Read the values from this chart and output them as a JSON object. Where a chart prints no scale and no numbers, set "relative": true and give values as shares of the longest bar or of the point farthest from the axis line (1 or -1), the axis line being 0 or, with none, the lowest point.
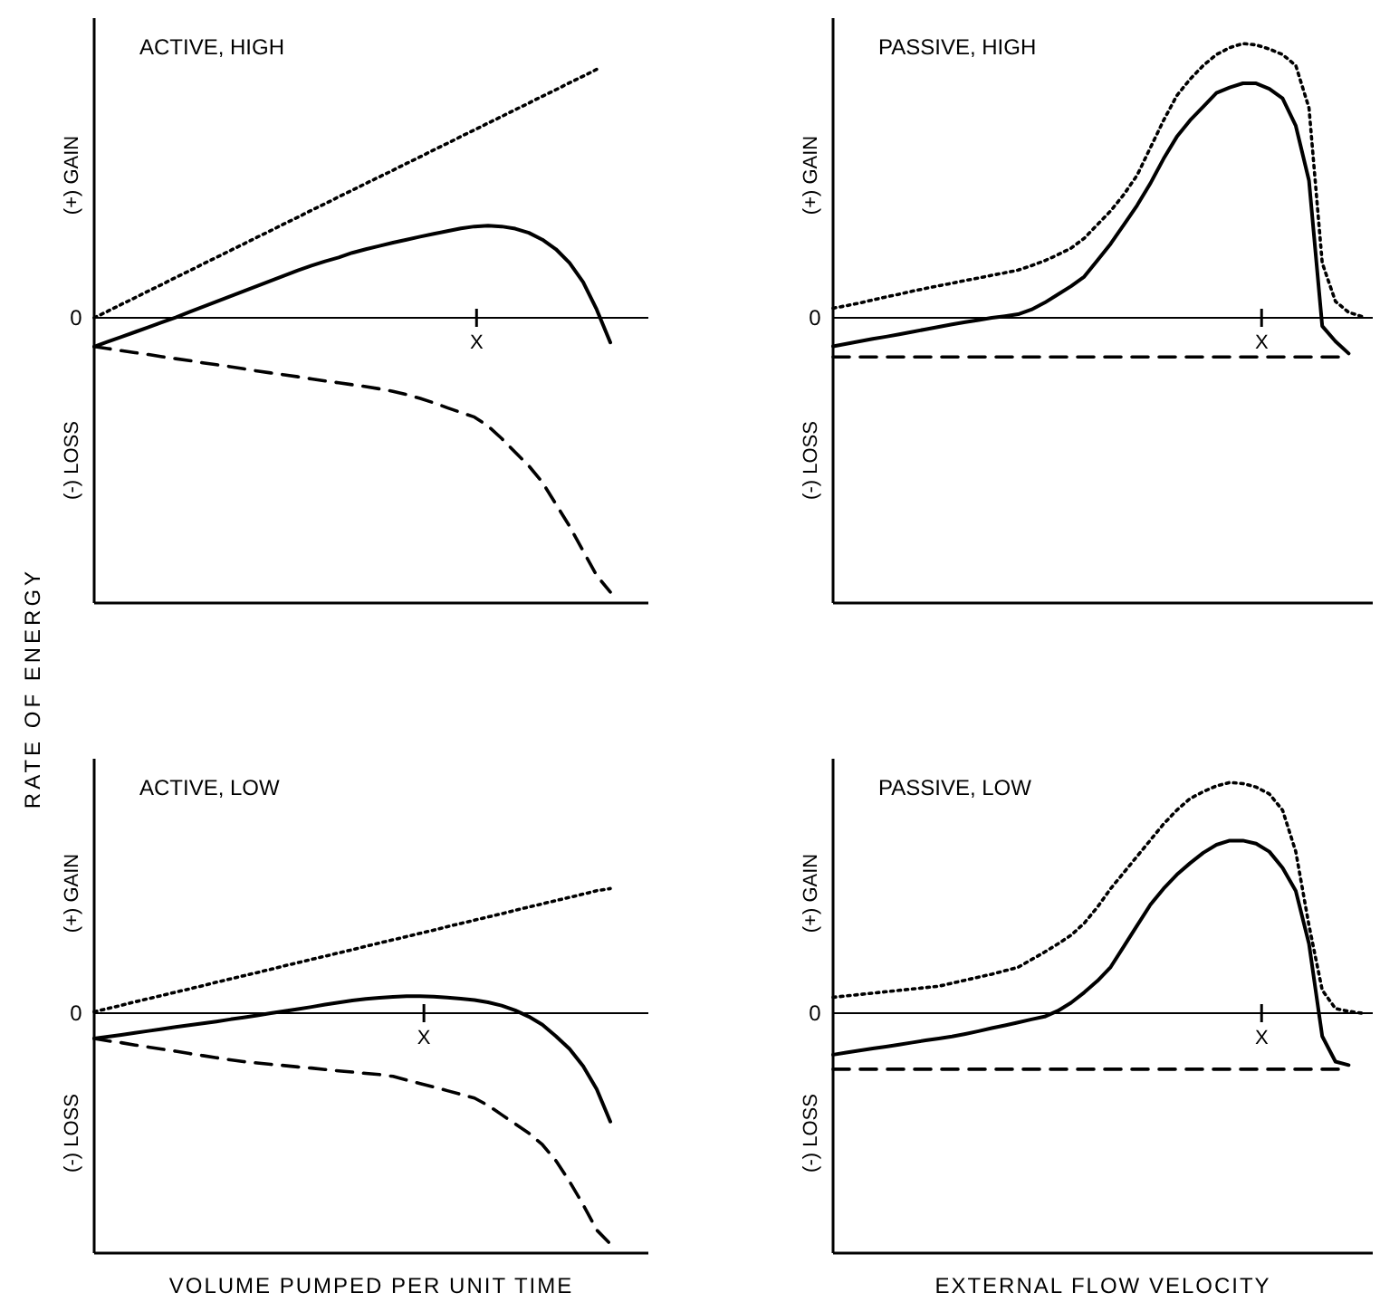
{
  "chart_data": [
    {
      "type": "line",
      "title": "ACTIVE, HIGH",
      "ylabel": "RATE OF ENERGY",
      "annotations": [
        "(+) GAIN",
        "(-) LOSS",
        "0",
        "X"
      ],
      "relative": true,
      "categories": [
        null,
        null,
        null,
        null,
        null,
        null,
        null,
        null,
        null,
        null,
        null,
        null,
        null,
        null,
        null,
        null,
        null,
        null,
        null,
        null,
        null,
        null,
        null,
        null,
        null,
        null,
        null,
        null,
        null,
        null,
        null,
        null,
        null,
        null,
        null,
        null,
        null,
        null,
        null,
        null,
        null
      ],
      "series": [
        {
          "color": "#000000",
          "line_style": "dotted",
          "values": [
            0,
            0.024,
            0.049,
            0.073,
            0.098,
            0.122,
            0.147,
            0.171,
            0.196,
            0.22,
            0.245,
            0.269,
            0.294,
            0.318,
            0.343,
            0.367,
            0.392,
            0.416,
            0.441,
            0.465,
            0.49,
            0.514,
            0.538,
            0.563,
            0.587,
            0.612,
            0.636,
            0.661,
            0.685,
            0.71,
            0.734,
            0.759,
            0.783,
            0.808,
            0.832,
            0.857,
            0.881,
            0.906,
            null,
            null,
            null
          ]
        },
        {
          "color": "#000000",
          "line_style": "solid",
          "values": [
            -0.105,
            -0.087,
            -0.07,
            -0.052,
            -0.034,
            -0.016,
            0.001,
            0.021,
            0.04,
            0.059,
            0.078,
            0.097,
            0.116,
            0.135,
            0.154,
            0.173,
            0.19,
            0.206,
            0.22,
            0.237,
            0.25,
            0.262,
            0.274,
            0.285,
            0.296,
            0.306,
            0.316,
            0.326,
            0.333,
            0.336,
            0.333,
            0.325,
            0.31,
            0.285,
            0.25,
            0.2,
            0.13,
            0.03,
            -0.09,
            null,
            null
          ]
        },
        {
          "color": "#000000",
          "line_style": "dashed",
          "values": [
            -0.105,
            -0.112,
            -0.12,
            -0.127,
            -0.134,
            -0.142,
            -0.149,
            -0.156,
            -0.164,
            -0.171,
            -0.178,
            -0.186,
            -0.194,
            -0.201,
            -0.208,
            -0.215,
            -0.223,
            -0.23,
            -0.237,
            -0.244,
            -0.251,
            -0.259,
            -0.268,
            -0.28,
            -0.294,
            -0.31,
            -0.328,
            -0.345,
            -0.362,
            -0.395,
            -0.44,
            -0.49,
            -0.54,
            -0.6,
            -0.68,
            -0.76,
            -0.85,
            -0.94,
            -1,
            null,
            null
          ]
        }
      ]
    },
    {
      "type": "line",
      "title": "PASSIVE, HIGH",
      "annotations": [
        "(+) GAIN",
        "(-) LOSS",
        "0",
        "X"
      ],
      "relative": true,
      "categories": [
        null,
        null,
        null,
        null,
        null,
        null,
        null,
        null,
        null,
        null,
        null,
        null,
        null,
        null,
        null,
        null,
        null,
        null,
        null,
        null,
        null,
        null,
        null,
        null,
        null,
        null,
        null,
        null,
        null,
        null,
        null,
        null,
        null,
        null,
        null,
        null,
        null,
        null,
        null,
        null,
        null
      ],
      "series": [
        {
          "color": "#000000",
          "line_style": "dotted",
          "values": [
            0.035,
            0.044,
            0.054,
            0.065,
            0.076,
            0.086,
            0.097,
            0.107,
            0.117,
            0.126,
            0.136,
            0.145,
            0.155,
            0.164,
            0.174,
            0.19,
            0.208,
            0.23,
            0.254,
            0.29,
            0.34,
            0.39,
            0.45,
            0.52,
            0.62,
            0.72,
            0.81,
            0.87,
            0.92,
            0.96,
            0.985,
            1,
            0.995,
            0.98,
            0.96,
            0.92,
            0.765,
            0.2,
            0.06,
            0.02,
            0.005
          ]
        },
        {
          "color": "#000000",
          "line_style": "solid",
          "values": [
            -0.104,
            -0.095,
            -0.086,
            -0.077,
            -0.069,
            -0.06,
            -0.051,
            -0.042,
            -0.033,
            -0.024,
            -0.016,
            -0.008,
            0,
            0.006,
            0.013,
            0.03,
            0.055,
            0.085,
            0.115,
            0.15,
            0.21,
            0.27,
            0.34,
            0.41,
            0.49,
            0.58,
            0.66,
            0.72,
            0.77,
            0.82,
            0.84,
            0.855,
            0.855,
            0.835,
            0.8,
            0.7,
            0.5,
            -0.03,
            -0.086,
            -0.13,
            null
          ]
        },
        {
          "color": "#000000",
          "line_style": "dashed",
          "values": [
            -0.143,
            -0.143,
            -0.143,
            -0.143,
            -0.143,
            -0.143,
            -0.143,
            -0.143,
            -0.143,
            -0.143,
            -0.143,
            -0.143,
            -0.143,
            -0.143,
            -0.143,
            -0.143,
            -0.143,
            -0.143,
            -0.143,
            -0.143,
            -0.143,
            -0.143,
            -0.143,
            -0.143,
            -0.143,
            -0.143,
            -0.143,
            -0.143,
            -0.143,
            -0.143,
            -0.143,
            -0.143,
            -0.143,
            -0.143,
            -0.143,
            -0.143,
            -0.143,
            -0.143,
            -0.143,
            -0.143,
            null
          ]
        }
      ]
    },
    {
      "type": "line",
      "title": "ACTIVE, LOW",
      "xlabel": "VOLUME PUMPED PER UNIT TIME",
      "annotations": [
        "(+) GAIN",
        "(-) LOSS",
        "0",
        "X"
      ],
      "relative": true,
      "categories": [
        null,
        null,
        null,
        null,
        null,
        null,
        null,
        null,
        null,
        null,
        null,
        null,
        null,
        null,
        null,
        null,
        null,
        null,
        null,
        null,
        null,
        null,
        null,
        null,
        null,
        null,
        null,
        null,
        null,
        null,
        null,
        null,
        null,
        null,
        null,
        null,
        null,
        null,
        null,
        null,
        null
      ],
      "series": [
        {
          "color": "#000000",
          "line_style": "dotted",
          "values": [
            0.006,
            0.02,
            0.034,
            0.049,
            0.063,
            0.077,
            0.091,
            0.105,
            0.119,
            0.134,
            0.148,
            0.162,
            0.176,
            0.19,
            0.205,
            0.219,
            0.233,
            0.247,
            0.261,
            0.275,
            0.29,
            0.304,
            0.318,
            0.332,
            0.346,
            0.36,
            0.375,
            0.389,
            0.403,
            0.417,
            0.431,
            0.446,
            0.46,
            0.474,
            0.488,
            0.502,
            0.516,
            0.531,
            0.54,
            null,
            null
          ]
        },
        {
          "color": "#000000",
          "line_style": "solid",
          "values": [
            -0.11,
            -0.102,
            -0.094,
            -0.085,
            -0.077,
            -0.069,
            -0.06,
            -0.052,
            -0.044,
            -0.036,
            -0.027,
            -0.019,
            -0.01,
            0,
            0.009,
            0.018,
            0.027,
            0.037,
            0.046,
            0.055,
            0.062,
            0.067,
            0.071,
            0.074,
            0.074,
            0.072,
            0.068,
            0.063,
            0.057,
            0.047,
            0.033,
            0.012,
            -0.015,
            -0.05,
            -0.1,
            -0.155,
            -0.23,
            -0.33,
            -0.47,
            null,
            null
          ]
        },
        {
          "color": "#000000",
          "line_style": "dashed",
          "values": [
            -0.11,
            -0.12,
            -0.128,
            -0.138,
            -0.147,
            -0.156,
            -0.165,
            -0.175,
            -0.184,
            -0.193,
            -0.202,
            -0.21,
            -0.216,
            -0.222,
            -0.227,
            -0.233,
            -0.238,
            -0.244,
            -0.25,
            -0.255,
            -0.261,
            -0.266,
            -0.274,
            -0.29,
            -0.305,
            -0.32,
            -0.336,
            -0.352,
            -0.368,
            -0.4,
            -0.44,
            -0.48,
            -0.52,
            -0.57,
            -0.64,
            -0.73,
            -0.83,
            -0.94,
            -1,
            null,
            null
          ]
        }
      ]
    },
    {
      "type": "line",
      "title": "PASSIVE, LOW",
      "xlabel": "EXTERNAL FLOW VELOCITY",
      "annotations": [
        "(+) GAIN",
        "(-) LOSS",
        "0",
        "X"
      ],
      "relative": true,
      "categories": [
        null,
        null,
        null,
        null,
        null,
        null,
        null,
        null,
        null,
        null,
        null,
        null,
        null,
        null,
        null,
        null,
        null,
        null,
        null,
        null,
        null,
        null,
        null,
        null,
        null,
        null,
        null,
        null,
        null,
        null,
        null,
        null,
        null,
        null,
        null,
        null,
        null,
        null,
        null,
        null,
        null
      ],
      "series": [
        {
          "color": "#000000",
          "line_style": "dotted",
          "values": [
            0.069,
            0.075,
            0.081,
            0.087,
            0.093,
            0.099,
            0.105,
            0.111,
            0.117,
            0.13,
            0.143,
            0.156,
            0.169,
            0.184,
            0.199,
            0.232,
            0.265,
            0.3,
            0.338,
            0.39,
            0.46,
            0.54,
            0.61,
            0.68,
            0.75,
            0.82,
            0.88,
            0.93,
            0.96,
            0.985,
            1,
            0.995,
            0.98,
            0.95,
            0.88,
            0.7,
            0.38,
            0.1,
            0.02,
            0.008,
            0
          ]
        },
        {
          "color": "#000000",
          "line_style": "solid",
          "values": [
            -0.18,
            -0.171,
            -0.162,
            -0.153,
            -0.145,
            -0.136,
            -0.127,
            -0.118,
            -0.11,
            -0.101,
            -0.09,
            -0.078,
            -0.065,
            -0.053,
            -0.04,
            -0.027,
            -0.015,
            0.01,
            0.045,
            0.09,
            0.14,
            0.2,
            0.29,
            0.38,
            0.47,
            0.54,
            0.6,
            0.65,
            0.695,
            0.73,
            0.748,
            0.748,
            0.735,
            0.7,
            0.63,
            0.53,
            0.3,
            -0.1,
            -0.21,
            -0.225,
            null
          ]
        },
        {
          "color": "#000000",
          "line_style": "dashed",
          "values": [
            -0.243,
            -0.243,
            -0.243,
            -0.243,
            -0.243,
            -0.243,
            -0.243,
            -0.243,
            -0.243,
            -0.243,
            -0.243,
            -0.243,
            -0.243,
            -0.243,
            -0.243,
            -0.243,
            -0.243,
            -0.243,
            -0.243,
            -0.243,
            -0.243,
            -0.243,
            -0.243,
            -0.243,
            -0.243,
            -0.243,
            -0.243,
            -0.243,
            -0.243,
            -0.243,
            -0.243,
            -0.243,
            -0.243,
            -0.243,
            -0.243,
            -0.243,
            -0.243,
            -0.243,
            -0.243,
            -0.243,
            null
          ]
        }
      ]
    }
  ]
}
